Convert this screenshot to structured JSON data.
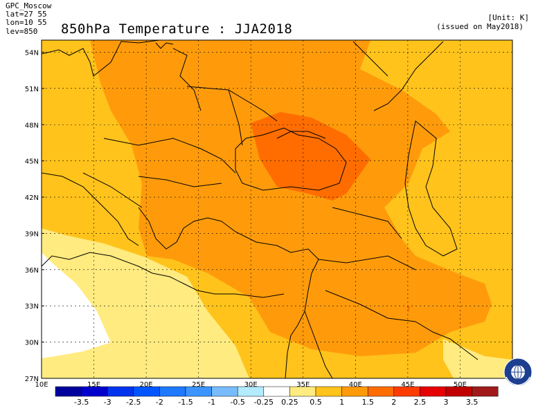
{
  "header": {
    "center": "GPC_Moscow",
    "lat_range": "lat=27 55",
    "lon_range": "lon=10 55",
    "level": "lev=850",
    "title": "850hPa Temperature : JJA2018",
    "unit": "[Unit: K]",
    "issued": "(issued on May2018)"
  },
  "map": {
    "lat_labels": [
      "54N",
      "51N",
      "48N",
      "45N",
      "42N",
      "39N",
      "36N",
      "33N",
      "30N",
      "27N"
    ],
    "lon_labels": [
      "10E",
      "15E",
      "20E",
      "25E",
      "30E",
      "35E",
      "40E",
      "45E",
      "50E"
    ],
    "lat_values": [
      54,
      51,
      48,
      45,
      42,
      39,
      36,
      33,
      30,
      27
    ],
    "lon_values": [
      10,
      15,
      20,
      25,
      30,
      35,
      40,
      45,
      50
    ],
    "extent": {
      "lon_min": 10,
      "lon_max": 55,
      "lat_min": 27,
      "lat_max": 55
    }
  },
  "colorbar": {
    "labels": [
      "-3.5",
      "-3",
      "-2.5",
      "-2",
      "-1.5",
      "-1",
      "-0.5",
      "-0.25",
      "0.25",
      "0.5",
      "1",
      "1.5",
      "2",
      "2.5",
      "3",
      "3.5"
    ],
    "colors": [
      "#00009c",
      "#0000cd",
      "#0033ee",
      "#0055ff",
      "#1e79ff",
      "#3c95ff",
      "#78bcff",
      "#b3ebff",
      "#ffffff",
      "#ffeb80",
      "#ffc31c",
      "#ff9b0b",
      "#ff6d00",
      "#ff3c00",
      "#e60000",
      "#c00000",
      "#a01a1a"
    ]
  },
  "logo": {
    "name": "wmo-emblem",
    "icon": "globe-laurel-icon"
  }
}
